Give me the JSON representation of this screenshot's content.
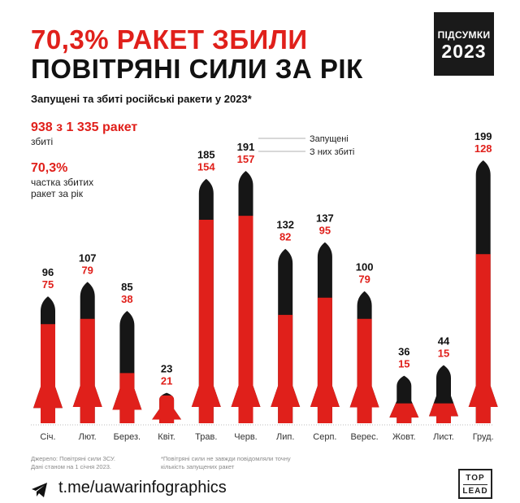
{
  "header": {
    "title_line1": "70,3% РАКЕТ ЗБИЛИ",
    "title_line2": "ПОВІТРЯНІ СИЛИ ЗА РІК",
    "badge_line1": "ПІДСУМКИ",
    "badge_line2": "2023",
    "subtitle": "Запущені та збиті російські ракети у 2023*"
  },
  "summary": {
    "count_value": "938 з 1 335 ракет",
    "count_label": "збиті",
    "share_value": "70,3%",
    "share_label_line1": "частка збитих",
    "share_label_line2": "ракет за рік"
  },
  "colors": {
    "launched": "#161616",
    "shot_down": "#e0201b"
  },
  "chart_data": {
    "type": "bar",
    "categories": [
      "Січ.",
      "Лют.",
      "Берез.",
      "Квіт.",
      "Трав.",
      "Черв.",
      "Лип.",
      "Серп.",
      "Верес.",
      "Жовт.",
      "Лист.",
      "Груд."
    ],
    "series": [
      {
        "name": "Запущені",
        "values": [
          96,
          107,
          85,
          23,
          185,
          191,
          132,
          137,
          100,
          36,
          44,
          199
        ]
      },
      {
        "name": "З них збиті",
        "values": [
          75,
          79,
          38,
          21,
          154,
          157,
          82,
          95,
          79,
          15,
          15,
          128
        ]
      }
    ],
    "legend_position": "top-center",
    "ylim": [
      0,
      199
    ],
    "grid": false
  },
  "footer": {
    "source_line1": "Джерело: Повітряні сили ЗСУ.",
    "source_line2": "Дані станом на 1 січня 2023.",
    "note_line1": "*Повітряні сили не завжди повідомляли точну",
    "note_line2": "кількість запущених ракет",
    "channel": "t.me/uawarinfographics",
    "logo_line1": "TOP",
    "logo_line2": "LEAD"
  }
}
